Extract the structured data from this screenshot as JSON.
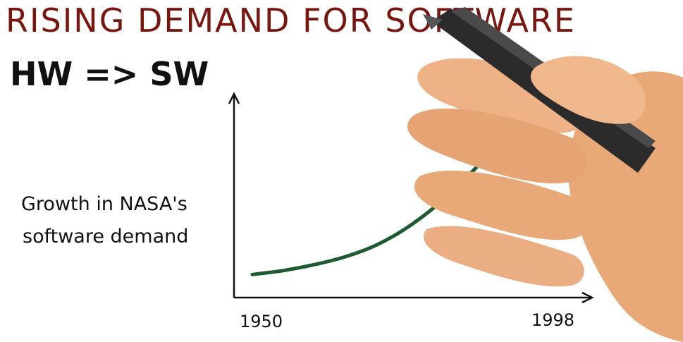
{
  "page": {
    "title": "RISING DEMAND FOR SOFTWARE",
    "subtitle": "HW => SW"
  },
  "colors": {
    "title": "#7a1610",
    "curve": "#1f5a32",
    "axis": "#111111",
    "skin": "#e9a878",
    "pen": "#2b2b2b"
  },
  "chart_data": {
    "type": "line",
    "title": "",
    "ylabel_lines": [
      "Growth in NASA's",
      "software demand"
    ],
    "xlabel": "",
    "x_tick_labels": [
      "1950",
      "1998"
    ],
    "xlim": [
      1950,
      1998
    ],
    "ylim": [
      0,
      1
    ],
    "grid": false,
    "legend": "none",
    "series": [
      {
        "x": [
          1950,
          1955,
          1960,
          1965,
          1970,
          1975,
          1980,
          1985,
          1990,
          1995,
          1998
        ],
        "y": [
          0.02,
          0.04,
          0.07,
          0.11,
          0.17,
          0.26,
          0.38,
          0.53,
          0.69,
          0.87,
          1.0
        ]
      }
    ]
  }
}
